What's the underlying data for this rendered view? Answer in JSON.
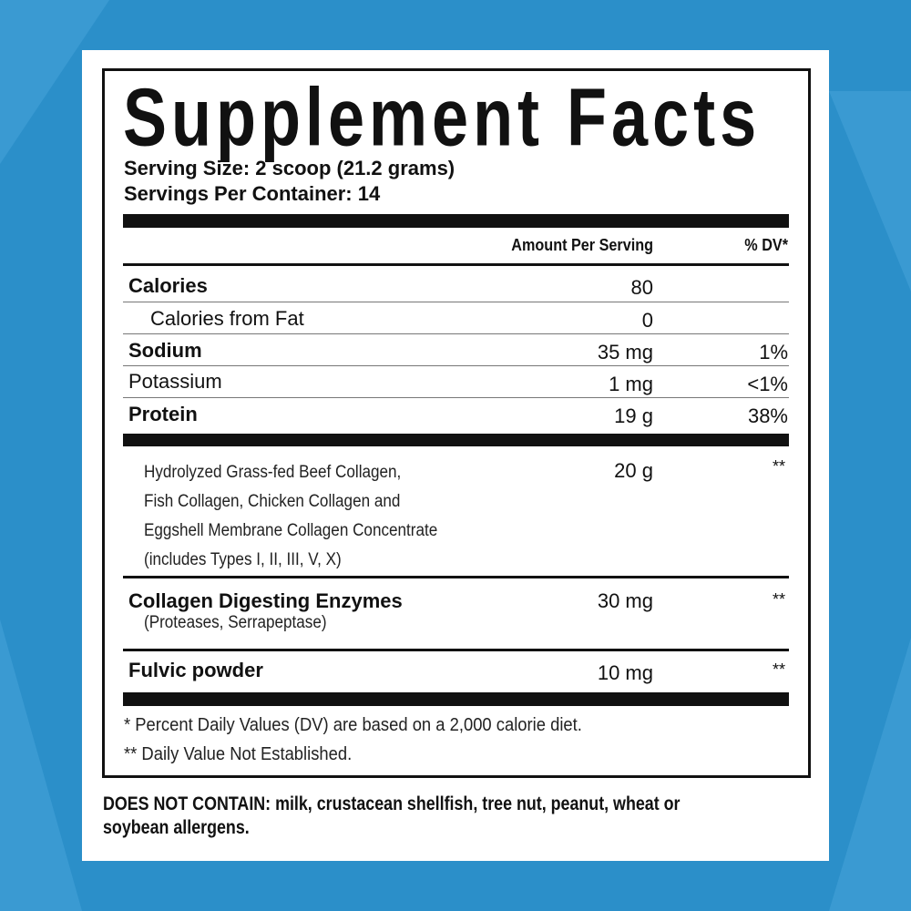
{
  "colors": {
    "background": "#2b8fc9",
    "pattern": "#4aa6dc",
    "panel": "#ffffff",
    "ink": "#111111"
  },
  "label": {
    "title": "Supplement Facts",
    "serving_size": "Serving Size: 2 scoop (21.2 grams)",
    "servings_per_container": "Servings Per Container: 14",
    "header": {
      "amount": "Amount Per Serving",
      "dv": "% DV*"
    },
    "rows": [
      {
        "name": "Calories",
        "amount": "80",
        "dv": ""
      },
      {
        "name": "Calories from Fat",
        "amount": "0",
        "dv": ""
      },
      {
        "name": "Sodium",
        "amount": "35 mg",
        "dv": "1%"
      },
      {
        "name": "Potassium",
        "amount": "1 mg",
        "dv": "<1%"
      },
      {
        "name": "Protein",
        "amount": "19 g",
        "dv": "38%"
      }
    ],
    "blend": {
      "lines": [
        "Hydrolyzed Grass-fed Beef Collagen,",
        "Fish Collagen, Chicken Collagen and",
        "Eggshell Membrane Collagen Concentrate",
        "(includes Types I, II, III, V, X)"
      ],
      "amount": "20 g",
      "dv": "**"
    },
    "enzymes": {
      "name": "Collagen Digesting Enzymes",
      "detail": "(Proteases, Serrapeptase)",
      "amount": "30 mg",
      "dv": "**"
    },
    "fulvic": {
      "name": "Fulvic powder",
      "amount": "10 mg",
      "dv": "**"
    },
    "footnotes": [
      "* Percent Daily Values (DV) are based on a 2,000 calorie diet.",
      "** Daily Value Not Established."
    ]
  },
  "allergens": [
    "DOES NOT CONTAIN: milk, crustacean shellfish, tree nut, peanut, wheat or",
    "soybean allergens."
  ]
}
